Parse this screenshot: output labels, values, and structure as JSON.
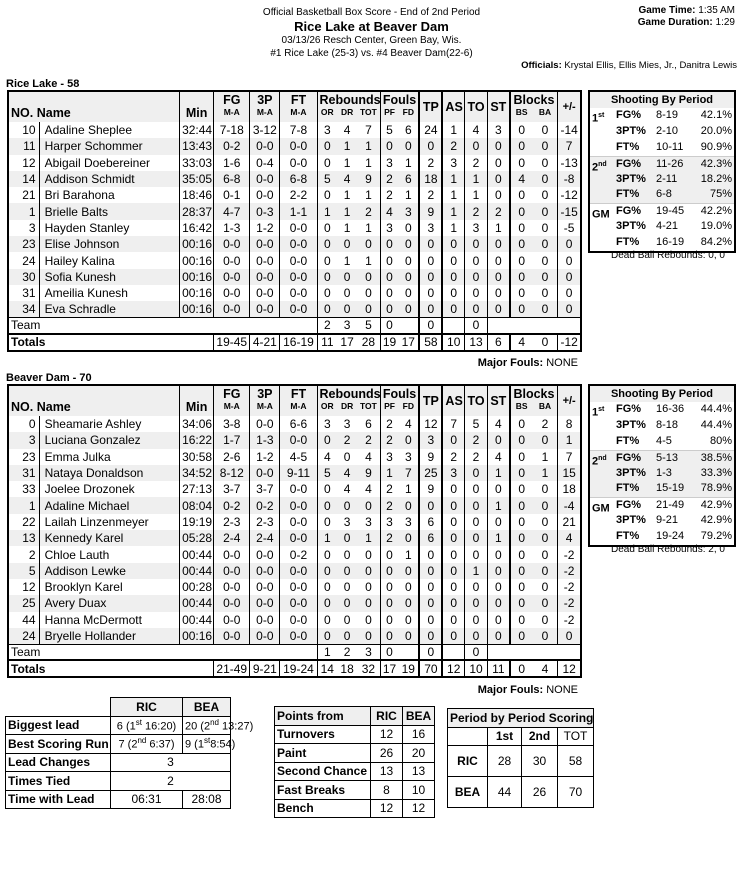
{
  "header": {
    "subtitle": "Official Basketball Box Score - End of 2nd Period",
    "title": "Rice Lake at Beaver Dam",
    "venue": "03/13/26 Resch Center, Green Bay, Wis.",
    "matchup": "#1 Rice Lake (25-3) vs. #4 Beaver Dam(22-6)",
    "game_time_label": "Game Time:",
    "game_time": "1:35 AM",
    "duration_label": "Game Duration:",
    "duration": "1:29",
    "officials_label": "Officials:",
    "officials": "Krystal Ellis, Ellis Mies, Jr., Danitra Lewis"
  },
  "columns": {
    "fg": "FG",
    "tp3": "3P",
    "ft": "FT",
    "reb": "Rebounds",
    "fouls": "Fouls",
    "tp": "TP",
    "as": "AS",
    "to": "TO",
    "st": "ST",
    "blocks": "Blocks",
    "pm": "+/-",
    "no": "NO.",
    "name": "Name",
    "min": "Min",
    "ma": "M-A",
    "or": "OR",
    "dr": "DR",
    "tot": "TOT",
    "pf": "PF",
    "fd": "FD",
    "bs": "BS",
    "ba": "BA",
    "team": "Team",
    "totals": "Totals"
  },
  "teams": [
    {
      "title": "Rice Lake - 58",
      "players": [
        [
          "10",
          "Adaline Sheplee",
          "32:44",
          "7-18",
          "3-12",
          "7-8",
          "3",
          "4",
          "7",
          "5",
          "6",
          "24",
          "1",
          "4",
          "3",
          "0",
          "0",
          "-14"
        ],
        [
          "11",
          "Harper Schommer",
          "13:43",
          "0-2",
          "0-0",
          "0-0",
          "0",
          "1",
          "1",
          "0",
          "0",
          "0",
          "2",
          "0",
          "0",
          "0",
          "0",
          "7"
        ],
        [
          "12",
          "Abigail Doebereiner",
          "33:03",
          "1-6",
          "0-4",
          "0-0",
          "0",
          "1",
          "1",
          "3",
          "1",
          "2",
          "3",
          "2",
          "0",
          "0",
          "0",
          "-13"
        ],
        [
          "14",
          "Addison Schmidt",
          "35:05",
          "6-8",
          "0-0",
          "6-8",
          "5",
          "4",
          "9",
          "2",
          "6",
          "18",
          "1",
          "1",
          "0",
          "4",
          "0",
          "-8"
        ],
        [
          "21",
          "Bri Barahona",
          "18:46",
          "0-1",
          "0-0",
          "2-2",
          "0",
          "1",
          "1",
          "2",
          "1",
          "2",
          "1",
          "1",
          "0",
          "0",
          "0",
          "-12"
        ],
        [
          "1",
          "Brielle Balts",
          "28:37",
          "4-7",
          "0-3",
          "1-1",
          "1",
          "1",
          "2",
          "4",
          "3",
          "9",
          "1",
          "2",
          "2",
          "0",
          "0",
          "-15"
        ],
        [
          "3",
          "Hayden Stanley",
          "16:42",
          "1-3",
          "1-2",
          "0-0",
          "0",
          "1",
          "1",
          "3",
          "0",
          "3",
          "1",
          "3",
          "1",
          "0",
          "0",
          "-5"
        ],
        [
          "23",
          "Elise Johnson",
          "00:16",
          "0-0",
          "0-0",
          "0-0",
          "0",
          "0",
          "0",
          "0",
          "0",
          "0",
          "0",
          "0",
          "0",
          "0",
          "0",
          "0"
        ],
        [
          "24",
          "Hailey Kalina",
          "00:16",
          "0-0",
          "0-0",
          "0-0",
          "0",
          "1",
          "1",
          "0",
          "0",
          "0",
          "0",
          "0",
          "0",
          "0",
          "0",
          "0"
        ],
        [
          "30",
          "Sofia Kunesh",
          "00:16",
          "0-0",
          "0-0",
          "0-0",
          "0",
          "0",
          "0",
          "0",
          "0",
          "0",
          "0",
          "0",
          "0",
          "0",
          "0",
          "0"
        ],
        [
          "31",
          "Ameilia Kunesh",
          "00:16",
          "0-0",
          "0-0",
          "0-0",
          "0",
          "0",
          "0",
          "0",
          "0",
          "0",
          "0",
          "0",
          "0",
          "0",
          "0",
          "0"
        ],
        [
          "34",
          "Eva Schradle",
          "00:16",
          "0-0",
          "0-0",
          "0-0",
          "0",
          "0",
          "0",
          "0",
          "0",
          "0",
          "0",
          "0",
          "0",
          "0",
          "0",
          "0"
        ]
      ],
      "team": {
        "or": "2",
        "dr": "3",
        "tot": "5",
        "pf": "0",
        "tp": "0",
        "to": "0"
      },
      "totals": [
        "19-45",
        "4-21",
        "16-19",
        "11",
        "17",
        "28",
        "19",
        "17",
        "58",
        "10",
        "13",
        "6",
        "4",
        "0",
        "-12"
      ],
      "major_fouls_label": "Major Fouls:",
      "major_fouls": "NONE",
      "shooting": {
        "title": "Shooting By Period",
        "rows": [
          [
            "1",
            "st",
            "FG%",
            "8-19",
            "42.1%"
          ],
          [
            "",
            "",
            "3PT%",
            "2-10",
            "20.0%"
          ],
          [
            "",
            "",
            "FT%",
            "10-11",
            "90.9%"
          ],
          [
            "2",
            "nd",
            "FG%",
            "11-26",
            "42.3%"
          ],
          [
            "",
            "",
            "3PT%",
            "2-11",
            "18.2%"
          ],
          [
            "",
            "",
            "FT%",
            "6-8",
            "75%"
          ],
          [
            "GM",
            "",
            "FG%",
            "19-45",
            "42.2%"
          ],
          [
            "",
            "",
            "3PT%",
            "4-21",
            "19.0%"
          ],
          [
            "",
            "",
            "FT%",
            "16-19",
            "84.2%"
          ]
        ]
      },
      "dead_ball": "Dead Ball Rebounds: 0, 0"
    },
    {
      "title": "Beaver Dam - 70",
      "players": [
        [
          "0",
          "Sheamarie Ashley",
          "34:06",
          "3-8",
          "0-0",
          "6-6",
          "3",
          "3",
          "6",
          "2",
          "4",
          "12",
          "7",
          "5",
          "4",
          "0",
          "2",
          "8"
        ],
        [
          "3",
          "Luciana Gonzalez",
          "16:22",
          "1-7",
          "1-3",
          "0-0",
          "0",
          "2",
          "2",
          "2",
          "0",
          "3",
          "0",
          "2",
          "0",
          "0",
          "0",
          "1"
        ],
        [
          "23",
          "Emma Julka",
          "30:58",
          "2-6",
          "1-2",
          "4-5",
          "4",
          "0",
          "4",
          "3",
          "3",
          "9",
          "2",
          "2",
          "4",
          "0",
          "1",
          "7"
        ],
        [
          "31",
          "Nataya Donaldson",
          "34:52",
          "8-12",
          "0-0",
          "9-11",
          "5",
          "4",
          "9",
          "1",
          "7",
          "25",
          "3",
          "0",
          "1",
          "0",
          "1",
          "15"
        ],
        [
          "33",
          "Joelee Drozonek",
          "27:13",
          "3-7",
          "3-7",
          "0-0",
          "0",
          "4",
          "4",
          "2",
          "1",
          "9",
          "0",
          "0",
          "0",
          "0",
          "0",
          "18"
        ],
        [
          "1",
          "Adaline Michael",
          "08:04",
          "0-2",
          "0-2",
          "0-0",
          "0",
          "0",
          "0",
          "2",
          "0",
          "0",
          "0",
          "0",
          "1",
          "0",
          "0",
          "-4"
        ],
        [
          "22",
          "Lailah Linzenmeyer",
          "19:19",
          "2-3",
          "2-3",
          "0-0",
          "0",
          "3",
          "3",
          "3",
          "3",
          "6",
          "0",
          "0",
          "0",
          "0",
          "0",
          "21"
        ],
        [
          "13",
          "Kennedy Karel",
          "05:28",
          "2-4",
          "2-4",
          "0-0",
          "1",
          "0",
          "1",
          "2",
          "0",
          "6",
          "0",
          "0",
          "1",
          "0",
          "0",
          "4"
        ],
        [
          "2",
          "Chloe Lauth",
          "00:44",
          "0-0",
          "0-0",
          "0-2",
          "0",
          "0",
          "0",
          "0",
          "1",
          "0",
          "0",
          "0",
          "0",
          "0",
          "0",
          "-2"
        ],
        [
          "5",
          "Addison Lewke",
          "00:44",
          "0-0",
          "0-0",
          "0-0",
          "0",
          "0",
          "0",
          "0",
          "0",
          "0",
          "0",
          "1",
          "0",
          "0",
          "0",
          "-2"
        ],
        [
          "12",
          "Brooklyn Karel",
          "00:28",
          "0-0",
          "0-0",
          "0-0",
          "0",
          "0",
          "0",
          "0",
          "0",
          "0",
          "0",
          "0",
          "0",
          "0",
          "0",
          "-2"
        ],
        [
          "25",
          "Avery Duax",
          "00:44",
          "0-0",
          "0-0",
          "0-0",
          "0",
          "0",
          "0",
          "0",
          "0",
          "0",
          "0",
          "0",
          "0",
          "0",
          "0",
          "-2"
        ],
        [
          "44",
          "Hanna McDermott",
          "00:44",
          "0-0",
          "0-0",
          "0-0",
          "0",
          "0",
          "0",
          "0",
          "0",
          "0",
          "0",
          "0",
          "0",
          "0",
          "0",
          "-2"
        ],
        [
          "24",
          "Bryelle Hollander",
          "00:16",
          "0-0",
          "0-0",
          "0-0",
          "0",
          "0",
          "0",
          "0",
          "0",
          "0",
          "0",
          "0",
          "0",
          "0",
          "0",
          "0"
        ]
      ],
      "team": {
        "or": "1",
        "dr": "2",
        "tot": "3",
        "pf": "0",
        "tp": "0",
        "to": "0"
      },
      "totals": [
        "21-49",
        "9-21",
        "19-24",
        "14",
        "18",
        "32",
        "17",
        "19",
        "70",
        "12",
        "10",
        "11",
        "0",
        "4",
        "12"
      ],
      "major_fouls_label": "Major Fouls:",
      "major_fouls": "NONE",
      "shooting": {
        "title": "Shooting By Period",
        "rows": [
          [
            "1",
            "st",
            "FG%",
            "16-36",
            "44.4%"
          ],
          [
            "",
            "",
            "3PT%",
            "8-18",
            "44.4%"
          ],
          [
            "",
            "",
            "FT%",
            "4-5",
            "80%"
          ],
          [
            "2",
            "nd",
            "FG%",
            "5-13",
            "38.5%"
          ],
          [
            "",
            "",
            "3PT%",
            "1-3",
            "33.3%"
          ],
          [
            "",
            "",
            "FT%",
            "15-19",
            "78.9%"
          ],
          [
            "GM",
            "",
            "FG%",
            "21-49",
            "42.9%"
          ],
          [
            "",
            "",
            "3PT%",
            "9-21",
            "42.9%"
          ],
          [
            "",
            "",
            "FT%",
            "19-24",
            "79.2%"
          ]
        ]
      },
      "dead_ball": "Dead Ball Rebounds: 2, 0"
    }
  ],
  "game_stats": {
    "cols": [
      "RIC",
      "BEA"
    ],
    "biggest_lead": {
      "label": "Biggest lead",
      "ric": [
        "6 (1",
        "st",
        "16:20)"
      ],
      "bea": [
        "20 (2",
        "nd",
        "13:27)"
      ]
    },
    "best_run": {
      "label": "Best Scoring Run",
      "ric": [
        "7 (2",
        "nd",
        "6:37)"
      ],
      "bea": [
        "9 (1",
        "st",
        "8:54)"
      ]
    },
    "lead_changes": {
      "label": "Lead Changes",
      "value": "3"
    },
    "times_tied": {
      "label": "Times Tied",
      "value": "2"
    },
    "time_with_lead": {
      "label": "Time with Lead",
      "ric": "06:31",
      "bea": "28:08"
    }
  },
  "points_from": {
    "title": "Points from",
    "cols": [
      "RIC",
      "BEA"
    ],
    "rows": [
      [
        "Turnovers",
        "12",
        "16"
      ],
      [
        "Paint",
        "26",
        "20"
      ],
      [
        "Second Chance",
        "13",
        "13"
      ],
      [
        "Fast Breaks",
        "8",
        "10"
      ],
      [
        "Bench",
        "12",
        "12"
      ]
    ]
  },
  "period_scoring": {
    "title": "Period by Period Scoring",
    "cols": [
      "1st",
      "2nd",
      "TOT"
    ],
    "rows": [
      [
        "RIC",
        "28",
        "30",
        "58"
      ],
      [
        "BEA",
        "44",
        "26",
        "70"
      ]
    ]
  }
}
